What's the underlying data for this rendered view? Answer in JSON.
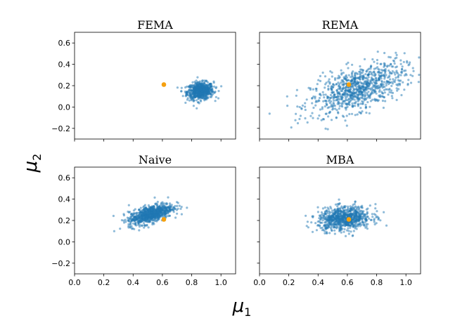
{
  "chart_data": {
    "type": "scatter",
    "xlabel": "μ",
    "xlabel_sub": "1",
    "ylabel": "μ",
    "ylabel_sub": "2",
    "xlim": [
      0.0,
      1.1
    ],
    "ylim": [
      -0.3,
      0.7
    ],
    "x_ticks": [
      0.0,
      0.2,
      0.4,
      0.6,
      0.8,
      1.0
    ],
    "x_tick_labels": [
      "0.0",
      "0.2",
      "0.4",
      "0.6",
      "0.8",
      "1.0"
    ],
    "y_ticks": [
      -0.2,
      0.0,
      0.2,
      0.4,
      0.6
    ],
    "y_tick_labels": [
      "−0.2",
      "0.0",
      "0.2",
      "0.4",
      "0.6"
    ],
    "true_point": {
      "x": 0.61,
      "y": 0.21,
      "color": "#f5a00f"
    },
    "scatter_color": "#1f77b4",
    "panels": [
      {
        "title": "FEMA",
        "mean": [
          0.86,
          0.15
        ],
        "sd": [
          0.045,
          0.04
        ],
        "rho": 0.1,
        "n": 700
      },
      {
        "title": "REMA",
        "mean": [
          0.67,
          0.17
        ],
        "sd": [
          0.16,
          0.12
        ],
        "rho": 0.55,
        "n": 900
      },
      {
        "title": "Naive",
        "mean": [
          0.52,
          0.26
        ],
        "sd": [
          0.075,
          0.05
        ],
        "rho": 0.6,
        "n": 800
      },
      {
        "title": "MBA",
        "mean": [
          0.58,
          0.22
        ],
        "sd": [
          0.09,
          0.055
        ],
        "rho": 0.15,
        "n": 800
      }
    ]
  }
}
